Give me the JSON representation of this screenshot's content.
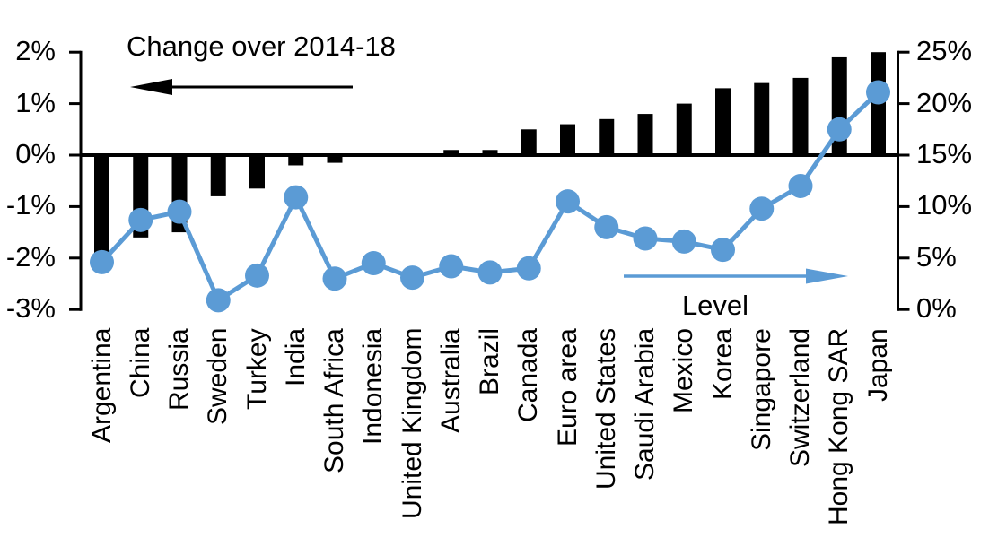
{
  "chart_data": {
    "type": "bar",
    "combo_note": "dual-axis combo: bars on left axis, line with markers on right axis",
    "title": "",
    "categories": [
      "Argentina",
      "China",
      "Russia",
      "Sweden",
      "Turkey",
      "India",
      "South Africa",
      "Indonesia",
      "United Kingdom",
      "Australia",
      "Brazil",
      "Canada",
      "Euro area",
      "United States",
      "Saudi Arabia",
      "Mexico",
      "Korea",
      "Singapore",
      "Switzerland",
      "Hong Kong SAR",
      "Japan"
    ],
    "series": [
      {
        "name": "Change over 2014-18",
        "type": "bar",
        "axis": "left",
        "color": "#000000",
        "values": [
          -1.9,
          -1.6,
          -1.5,
          -0.8,
          -0.65,
          -0.2,
          -0.15,
          0,
          0,
          0.1,
          0.1,
          0.5,
          0.6,
          0.7,
          0.8,
          1.0,
          1.3,
          1.4,
          1.5,
          1.9,
          2.0
        ]
      },
      {
        "name": "Level",
        "type": "line",
        "axis": "right",
        "color": "#5B9BD5",
        "values": [
          4.6,
          8.7,
          9.5,
          0.9,
          3.3,
          10.9,
          3.0,
          4.5,
          3.1,
          4.2,
          3.6,
          4.0,
          10.5,
          8.0,
          6.9,
          6.6,
          5.8,
          9.8,
          12.0,
          17.5,
          21.1
        ]
      }
    ],
    "left_axis": {
      "unit": "%",
      "min": -3,
      "max": 2,
      "tick_labels": [
        "2%",
        "1%",
        "0%",
        "-1%",
        "-2%",
        "-3%"
      ],
      "tick_values": [
        2,
        1,
        0,
        -1,
        -2,
        -3
      ]
    },
    "right_axis": {
      "unit": "%",
      "min": 0,
      "max": 25,
      "tick_labels": [
        "25%",
        "20%",
        "15%",
        "10%",
        "5%",
        "0%"
      ],
      "tick_values": [
        25,
        20,
        15,
        10,
        5,
        0
      ]
    },
    "annotations": [
      {
        "text": "Change over 2014-18",
        "arrow": "left",
        "color": "#000000"
      },
      {
        "text": "Level",
        "arrow": "right",
        "color": "#5B9BD5"
      }
    ],
    "grid": false,
    "legend_position": "none"
  }
}
